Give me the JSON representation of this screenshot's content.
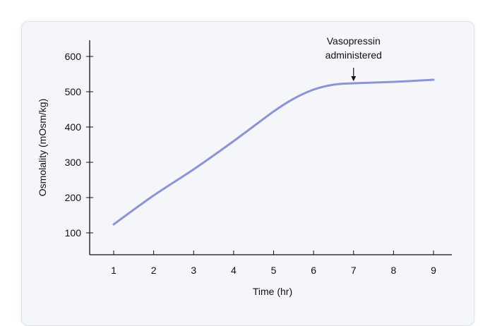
{
  "chart_data": {
    "type": "line",
    "title": "",
    "xlabel": "Time (hr)",
    "ylabel": "Osmolality (mOsm/kg)",
    "xlim": [
      0.4,
      9.5
    ],
    "ylim": [
      38,
      646
    ],
    "xticks": [
      1,
      2,
      3,
      4,
      5,
      6,
      7,
      8,
      9
    ],
    "yticks": [
      100,
      200,
      300,
      400,
      500,
      600
    ],
    "grid": false,
    "series": [
      {
        "x": [
          1,
          2,
          3,
          4,
          5,
          5.5,
          6,
          6.5,
          7,
          8,
          9
        ],
        "y": [
          124,
          206,
          280,
          360,
          444,
          480,
          506,
          520,
          524,
          528,
          534
        ],
        "color": "#8b95d6"
      }
    ],
    "annotations": [
      {
        "lines": [
          "Vasopressin",
          "administered"
        ],
        "x": 7,
        "y": 524,
        "arrow": true
      }
    ]
  }
}
